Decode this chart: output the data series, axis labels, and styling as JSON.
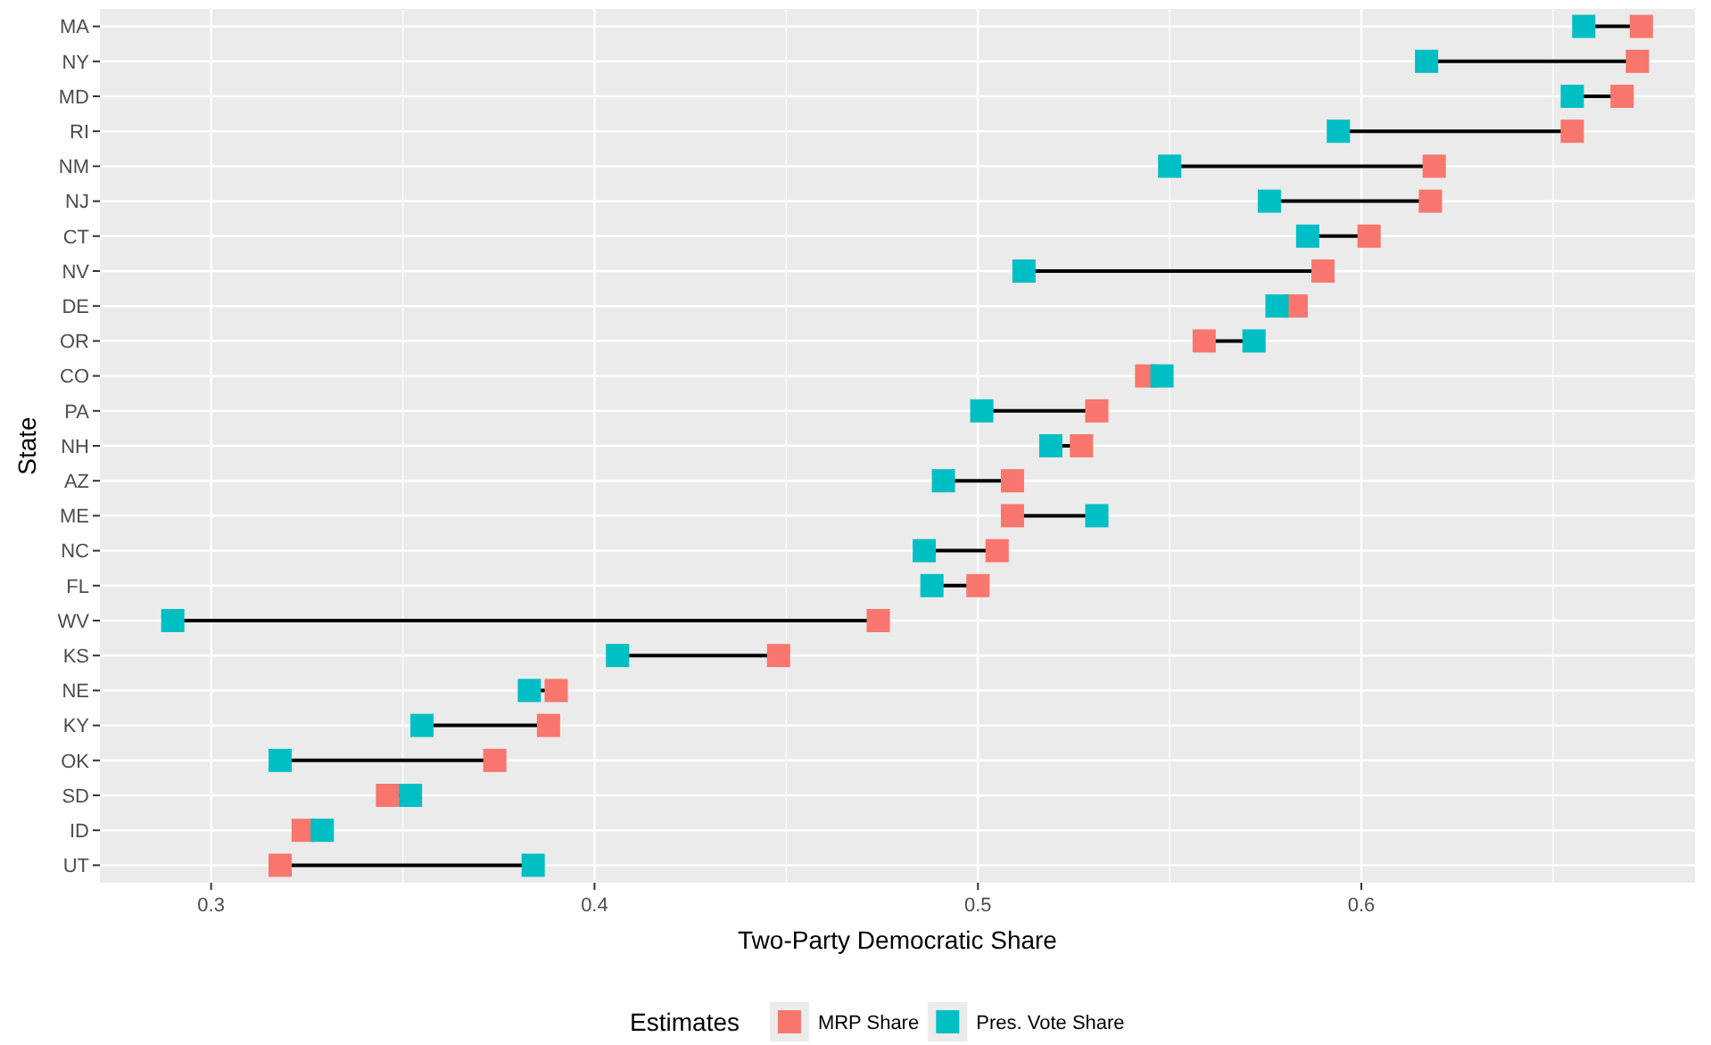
{
  "chart_data": {
    "type": "scatter",
    "orientation": "horizontal",
    "xlabel": "Two-Party Democratic Share",
    "ylabel": "State",
    "legend_title": "Estimates",
    "legend": "bottom",
    "grid": true,
    "marker": "square",
    "categories": [
      "MA",
      "NY",
      "MD",
      "RI",
      "NM",
      "NJ",
      "CT",
      "NV",
      "DE",
      "OR",
      "CO",
      "PA",
      "NH",
      "AZ",
      "ME",
      "NC",
      "FL",
      "WV",
      "KS",
      "NE",
      "KY",
      "OK",
      "SD",
      "ID",
      "UT"
    ],
    "xlim": [
      0.271,
      0.687
    ],
    "xticks": [
      0.3,
      0.4,
      0.5,
      0.6
    ],
    "series": [
      {
        "name": "MRP Share",
        "color": "#f8766d",
        "values": [
          0.673,
          0.672,
          0.668,
          0.655,
          0.619,
          0.618,
          0.602,
          0.59,
          0.583,
          0.559,
          0.544,
          0.531,
          0.527,
          0.509,
          0.509,
          0.505,
          0.5,
          0.474,
          0.448,
          0.39,
          0.388,
          0.374,
          0.346,
          0.324,
          0.318
        ]
      },
      {
        "name": "Pres. Vote Share",
        "color": "#00bfc4",
        "values": [
          0.658,
          0.617,
          0.655,
          0.594,
          0.55,
          0.576,
          0.586,
          0.512,
          0.578,
          0.572,
          0.548,
          0.501,
          0.519,
          0.491,
          0.531,
          0.486,
          0.488,
          0.29,
          0.406,
          0.383,
          0.355,
          0.318,
          0.352,
          0.329,
          0.384
        ]
      }
    ]
  }
}
